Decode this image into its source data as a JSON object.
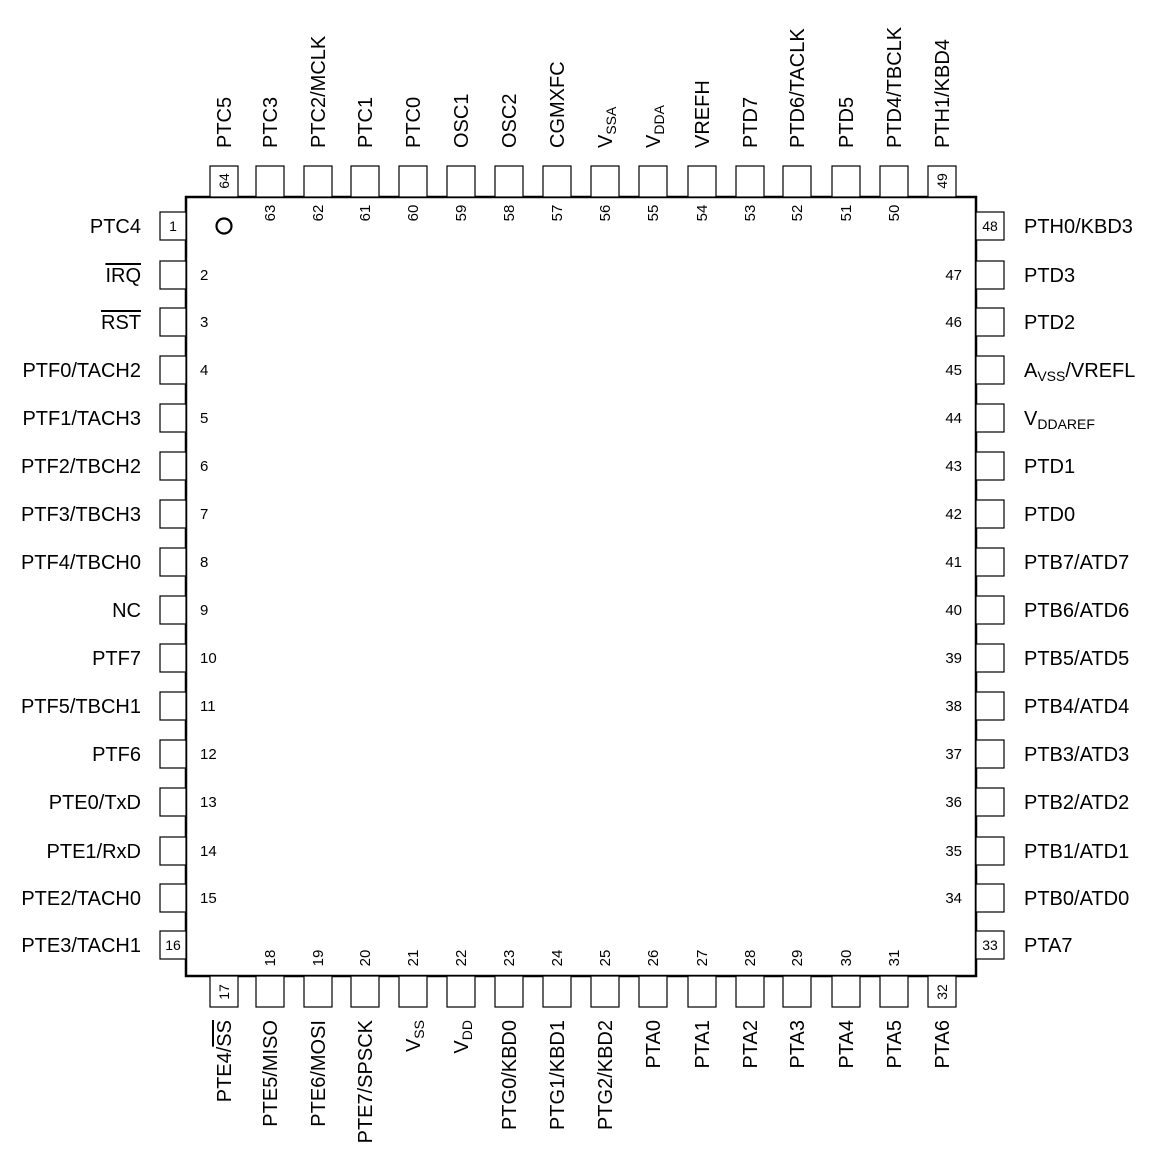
{
  "pins": {
    "left": [
      {
        "num": "1",
        "name": "PTC4"
      },
      {
        "num": "2",
        "name": "IRQ",
        "overline": true
      },
      {
        "num": "3",
        "name": "RST",
        "overline": true
      },
      {
        "num": "4",
        "name": "PTF0/TACH2"
      },
      {
        "num": "5",
        "name": "PTF1/TACH3"
      },
      {
        "num": "6",
        "name": "PTF2/TBCH2"
      },
      {
        "num": "7",
        "name": "PTF3/TBCH3"
      },
      {
        "num": "8",
        "name": "PTF4/TBCH0"
      },
      {
        "num": "9",
        "name": "NC"
      },
      {
        "num": "10",
        "name": "PTF7"
      },
      {
        "num": "11",
        "name": "PTF5/TBCH1"
      },
      {
        "num": "12",
        "name": "PTF6"
      },
      {
        "num": "13",
        "name": "PTE0/TxD"
      },
      {
        "num": "14",
        "name": "PTE1/RxD"
      },
      {
        "num": "15",
        "name": "PTE2/TACH0"
      },
      {
        "num": "16",
        "name": "PTE3/TACH1"
      }
    ],
    "bottom": [
      {
        "num": "17",
        "name": "PTE4/",
        "over": "SS"
      },
      {
        "num": "18",
        "name": "PTE5/MISO"
      },
      {
        "num": "19",
        "name": "PTE6/MOSI"
      },
      {
        "num": "20",
        "name": "PTE7/SPSCK"
      },
      {
        "num": "21",
        "name": "V",
        "sub": "SS"
      },
      {
        "num": "22",
        "name": "V",
        "sub": "DD"
      },
      {
        "num": "23",
        "name": "PTG0/KBD0"
      },
      {
        "num": "24",
        "name": "PTG1/KBD1"
      },
      {
        "num": "25",
        "name": "PTG2/KBD2"
      },
      {
        "num": "26",
        "name": "PTA0"
      },
      {
        "num": "27",
        "name": "PTA1"
      },
      {
        "num": "28",
        "name": "PTA2"
      },
      {
        "num": "29",
        "name": "PTA3"
      },
      {
        "num": "30",
        "name": "PTA4"
      },
      {
        "num": "31",
        "name": "PTA5"
      },
      {
        "num": "32",
        "name": "PTA6"
      }
    ],
    "right": [
      {
        "num": "33",
        "name": "PTA7"
      },
      {
        "num": "34",
        "name": "PTB0/ATD0"
      },
      {
        "num": "35",
        "name": "PTB1/ATD1"
      },
      {
        "num": "36",
        "name": "PTB2/ATD2"
      },
      {
        "num": "37",
        "name": "PTB3/ATD3"
      },
      {
        "num": "38",
        "name": "PTB4/ATD4"
      },
      {
        "num": "39",
        "name": "PTB5/ATD5"
      },
      {
        "num": "40",
        "name": "PTB6/ATD6"
      },
      {
        "num": "41",
        "name": "PTB7/ATD7"
      },
      {
        "num": "42",
        "name": "PTD0"
      },
      {
        "num": "43",
        "name": "PTD1"
      },
      {
        "num": "44",
        "name": "V",
        "sub": "DDAREF"
      },
      {
        "num": "45",
        "name": "A",
        "sub": "VSS",
        "suffix": "/VREFL"
      },
      {
        "num": "46",
        "name": "PTD2"
      },
      {
        "num": "47",
        "name": "PTD3"
      },
      {
        "num": "48",
        "name": "PTH0/KBD3"
      }
    ],
    "top": [
      {
        "num": "49",
        "name": "PTH1/KBD4"
      },
      {
        "num": "50",
        "name": "PTD4/TBCLK"
      },
      {
        "num": "51",
        "name": "PTD5"
      },
      {
        "num": "52",
        "name": "PTD6/TACLK"
      },
      {
        "num": "53",
        "name": "PTD7"
      },
      {
        "num": "54",
        "name": "VREFH"
      },
      {
        "num": "55",
        "name": "V",
        "sub": "DDA"
      },
      {
        "num": "56",
        "name": "V",
        "sub": "SSA"
      },
      {
        "num": "57",
        "name": "CGMXFC"
      },
      {
        "num": "58",
        "name": "OSC2"
      },
      {
        "num": "59",
        "name": "OSC1"
      },
      {
        "num": "60",
        "name": "PTC0"
      },
      {
        "num": "61",
        "name": "PTC1"
      },
      {
        "num": "62",
        "name": "PTC2/MCLK"
      },
      {
        "num": "63",
        "name": "PTC3"
      },
      {
        "num": "64",
        "name": "PTC5"
      }
    ]
  }
}
